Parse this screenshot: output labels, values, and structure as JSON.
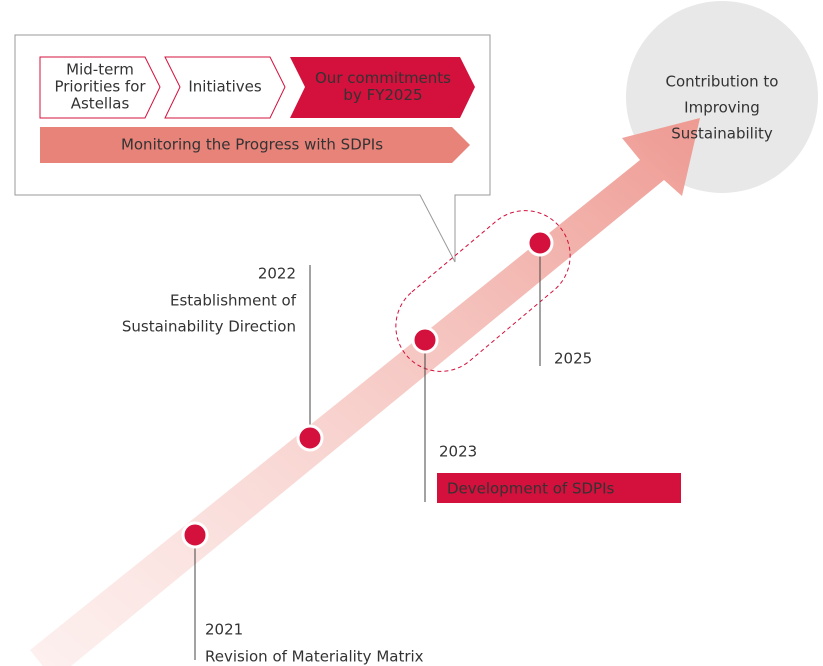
{
  "callout": {
    "steps": [
      {
        "lines": [
          "Mid-term",
          "Priorities for",
          "Astellas"
        ]
      },
      {
        "lines": [
          "Initiatives"
        ]
      },
      {
        "lines": [
          "Our commitments",
          "by FY2025"
        ]
      }
    ],
    "monitoring": "Monitoring the Progress with SDPIs"
  },
  "goal": {
    "lines": [
      "Contribution to",
      "Improving",
      "Sustainability"
    ]
  },
  "milestones": [
    {
      "year": "2021",
      "lines": [
        "Revision of Materiality Matrix"
      ]
    },
    {
      "year": "2022",
      "lines": [
        "Establishment of",
        "Sustainability Direction"
      ]
    },
    {
      "year": "2023",
      "lines": [
        "Development of SDPIs"
      ]
    },
    {
      "year": "2025",
      "lines": []
    }
  ]
}
